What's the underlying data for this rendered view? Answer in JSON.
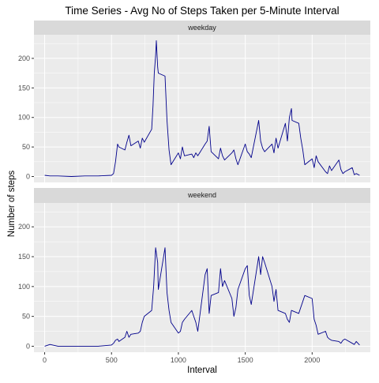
{
  "chart_data": {
    "type": "line",
    "title": "Time Series - Avg No of Steps Taken per 5-Minute Interval",
    "xlabel": "Interval",
    "ylabel": "Number of steps",
    "xlim": [
      -80,
      2435
    ],
    "ylim": [
      -10,
      240
    ],
    "x_ticks": [
      0,
      500,
      1000,
      1500,
      2000
    ],
    "y_ticks": [
      0,
      50,
      100,
      150,
      200
    ],
    "grid": true,
    "colors": {
      "line": "#00008b",
      "panel_bg": "#ebebeb",
      "strip_bg": "#d9d9d9",
      "grid": "#ffffff"
    },
    "panels": [
      {
        "name": "weekday",
        "x": [
          0,
          40,
          100,
          200,
          300,
          400,
          500,
          515,
          530,
          545,
          555,
          600,
          615,
          630,
          645,
          700,
          715,
          730,
          745,
          800,
          810,
          820,
          830,
          835,
          845,
          850,
          900,
          915,
          930,
          945,
          950,
          1000,
          1015,
          1030,
          1045,
          1100,
          1115,
          1130,
          1145,
          1200,
          1215,
          1230,
          1245,
          1300,
          1315,
          1330,
          1345,
          1400,
          1415,
          1430,
          1445,
          1500,
          1515,
          1530,
          1545,
          1600,
          1615,
          1630,
          1645,
          1700,
          1715,
          1730,
          1745,
          1800,
          1815,
          1830,
          1845,
          1850,
          1900,
          1915,
          1930,
          1945,
          2000,
          2015,
          2030,
          2045,
          2100,
          2115,
          2130,
          2145,
          2200,
          2215,
          2230,
          2245,
          2300,
          2315,
          2330,
          2355
        ],
        "y": [
          2,
          1,
          1,
          0,
          1,
          1,
          2,
          5,
          25,
          55,
          50,
          45,
          58,
          70,
          52,
          60,
          48,
          65,
          58,
          80,
          120,
          175,
          205,
          230,
          185,
          175,
          170,
          95,
          45,
          20,
          22,
          40,
          30,
          50,
          35,
          38,
          32,
          40,
          35,
          55,
          60,
          85,
          42,
          30,
          48,
          35,
          28,
          40,
          45,
          30,
          20,
          55,
          42,
          38,
          32,
          95,
          60,
          48,
          42,
          55,
          40,
          65,
          48,
          90,
          60,
          100,
          115,
          95,
          90,
          65,
          45,
          20,
          30,
          15,
          35,
          25,
          8,
          5,
          18,
          10,
          28,
          12,
          5,
          8,
          15,
          3,
          5,
          2
        ]
      },
      {
        "name": "weekend",
        "x": [
          0,
          40,
          100,
          200,
          300,
          400,
          500,
          515,
          530,
          545,
          555,
          600,
          615,
          630,
          645,
          700,
          715,
          730,
          745,
          800,
          815,
          830,
          845,
          850,
          900,
          915,
          930,
          945,
          1000,
          1015,
          1030,
          1045,
          1100,
          1115,
          1130,
          1145,
          1200,
          1215,
          1230,
          1245,
          1300,
          1315,
          1330,
          1345,
          1400,
          1415,
          1430,
          1445,
          1500,
          1515,
          1530,
          1545,
          1600,
          1615,
          1630,
          1645,
          1700,
          1715,
          1730,
          1745,
          1800,
          1815,
          1830,
          1845,
          1900,
          1915,
          1930,
          1945,
          2000,
          2015,
          2030,
          2045,
          2100,
          2115,
          2130,
          2145,
          2200,
          2215,
          2230,
          2245,
          2300,
          2315,
          2330,
          2355
        ],
        "y": [
          0,
          3,
          0,
          0,
          0,
          0,
          2,
          5,
          10,
          12,
          8,
          15,
          25,
          15,
          20,
          22,
          25,
          40,
          50,
          60,
          100,
          165,
          140,
          95,
          165,
          90,
          60,
          40,
          22,
          25,
          40,
          45,
          60,
          50,
          40,
          25,
          120,
          130,
          55,
          85,
          90,
          130,
          100,
          110,
          80,
          50,
          65,
          95,
          130,
          135,
          85,
          70,
          150,
          120,
          150,
          140,
          100,
          75,
          95,
          60,
          55,
          45,
          40,
          60,
          55,
          65,
          75,
          85,
          80,
          45,
          35,
          20,
          25,
          15,
          12,
          10,
          8,
          5,
          10,
          12,
          5,
          3,
          8,
          2
        ]
      }
    ]
  }
}
